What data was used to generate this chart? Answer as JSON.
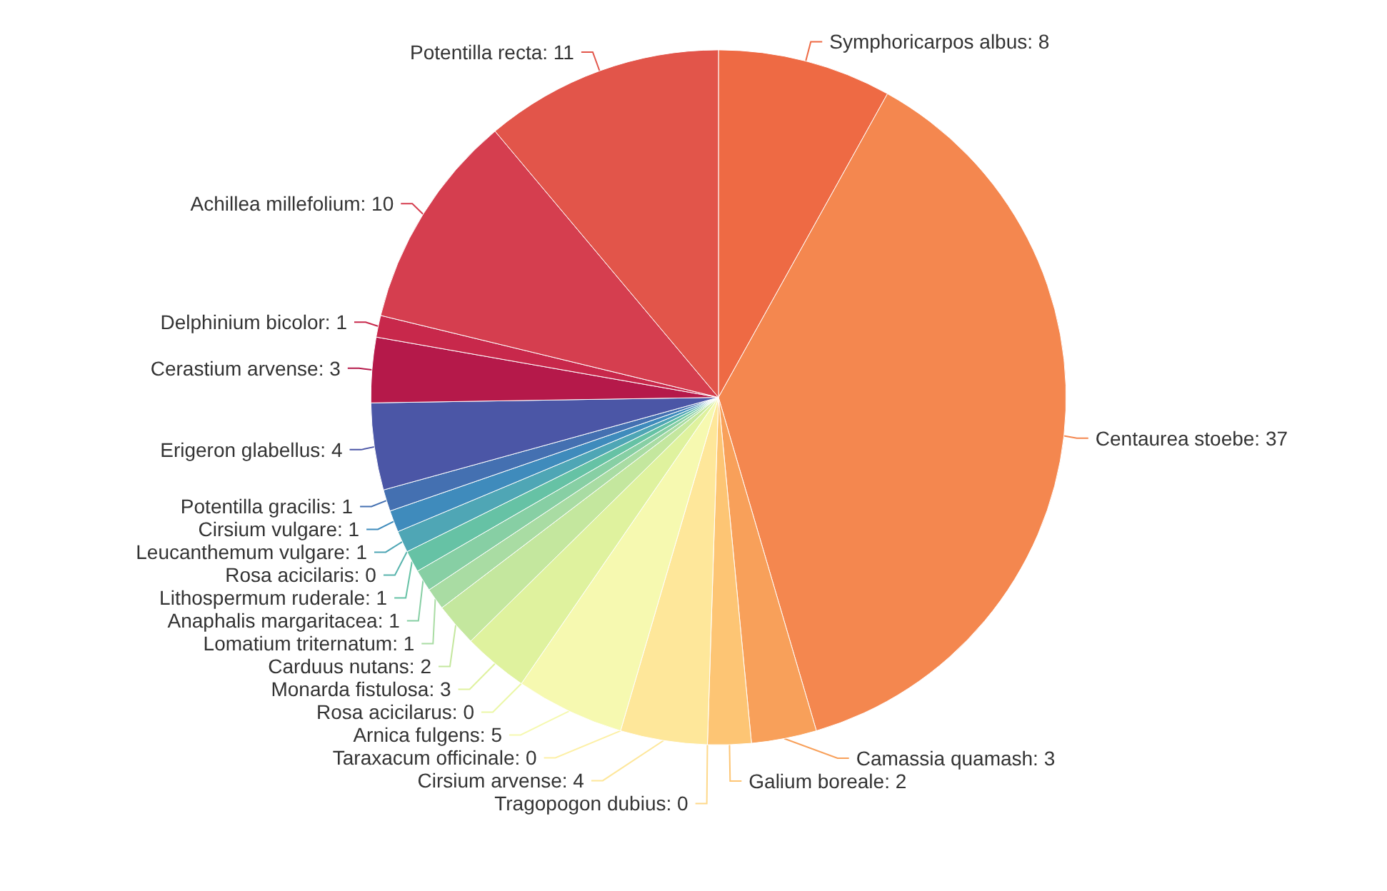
{
  "chart_data": {
    "type": "pie",
    "categories": [
      "Symphoricarpos albus",
      "Centaurea stoebe",
      "Camassia quamash",
      "Galium boreale",
      "Tragopogon dubius",
      "Cirsium arvense",
      "Taraxacum officinale",
      "Arnica fulgens",
      "Rosa acicilarus",
      "Monarda fistulosa",
      "Carduus nutans",
      "Lomatium triternatum",
      "Anaphalis margaritacea",
      "Lithospermum ruderale",
      "Rosa acicilaris",
      "Leucanthemum vulgare",
      "Cirsium vulgare",
      "Potentilla gracilis",
      "Erigeron glabellus",
      "Cerastium arvense",
      "Delphinium bicolor",
      "Achillea millefolium",
      "Potentilla recta"
    ],
    "values": [
      8,
      37,
      3,
      2,
      0,
      4,
      0,
      5,
      0,
      3,
      2,
      1,
      1,
      1,
      0,
      1,
      1,
      1,
      4,
      3,
      1,
      10,
      11
    ],
    "colors": [
      "#ee6a44",
      "#f4874f",
      "#f8a05a",
      "#fdc574",
      "#fed889",
      "#fee79a",
      "#fdf0a6",
      "#f6f9b0",
      "#ebf7a6",
      "#dff29e",
      "#c4e79e",
      "#a9dca3",
      "#87cfa4",
      "#66c2a5",
      "#58b4ad",
      "#4fa6b5",
      "#3f8bbc",
      "#4470b1",
      "#4b56a6",
      "#b5194a",
      "#c8284b",
      "#d53e4f",
      "#e2554a"
    ],
    "value_labels": [
      ": 8",
      ": 37",
      ": 3",
      ": 2",
      ": 0",
      ": 4",
      ": 0",
      ": 5",
      ": 0",
      ": 3",
      ": 2",
      ": 1",
      ": 1",
      ": 1",
      ": 0",
      ": 1",
      ": 1",
      ": 1",
      ": 4",
      ": 3",
      ": 1",
      ": 10",
      ": 11"
    ],
    "legend": false
  }
}
